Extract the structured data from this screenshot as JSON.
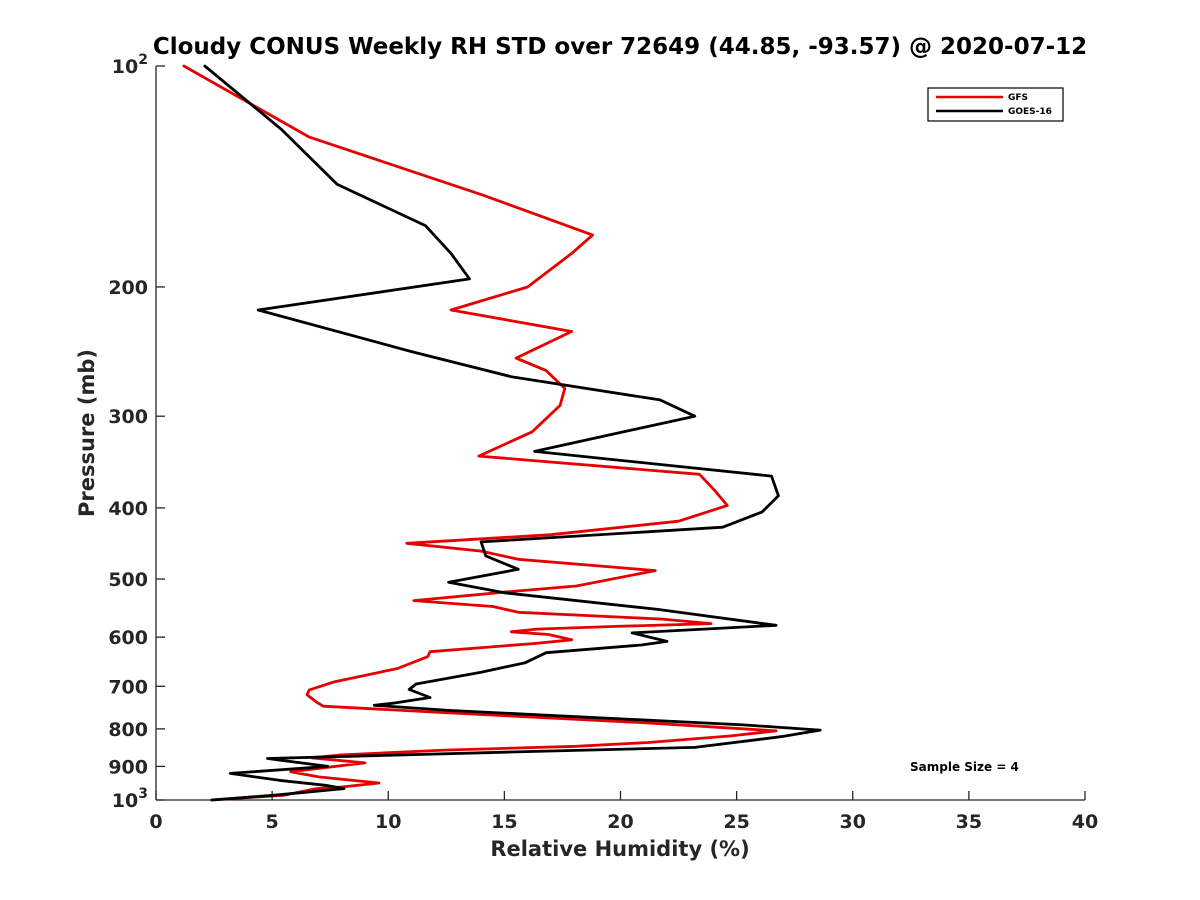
{
  "chart_data": {
    "type": "line",
    "title": "Cloudy CONUS Weekly RH STD over 72649 (44.85, -93.57) @ 2020-07-12",
    "xlabel": "Relative Humidity (%)",
    "ylabel": "Pressure (mb)",
    "xlim": [
      0,
      40
    ],
    "ylim": [
      100,
      1000
    ],
    "y_scale": "log",
    "y_reversed": true,
    "x_ticks": [
      "0",
      "5",
      "10",
      "15",
      "20",
      "25",
      "30",
      "35",
      "40"
    ],
    "y_ticks": [
      {
        "value": 100,
        "label": "10",
        "sup": "2"
      },
      {
        "value": 200,
        "label": "200",
        "sup": ""
      },
      {
        "value": 300,
        "label": "300",
        "sup": ""
      },
      {
        "value": 400,
        "label": "400",
        "sup": ""
      },
      {
        "value": 500,
        "label": "500",
        "sup": ""
      },
      {
        "value": 600,
        "label": "600",
        "sup": ""
      },
      {
        "value": 700,
        "label": "700",
        "sup": ""
      },
      {
        "value": 800,
        "label": "800",
        "sup": ""
      },
      {
        "value": 900,
        "label": "900",
        "sup": ""
      },
      {
        "value": 1000,
        "label": "10",
        "sup": "3"
      }
    ],
    "grid": false,
    "legend_position": "top-right",
    "annotation": "Sample Size = 4",
    "series": [
      {
        "name": "GFS",
        "color": "#e60000",
        "points": [
          [
            1.2,
            100
          ],
          [
            6.6,
            125
          ],
          [
            14.1,
            150
          ],
          [
            18.8,
            170
          ],
          [
            17.9,
            180
          ],
          [
            16.0,
            200
          ],
          [
            12.7,
            215
          ],
          [
            17.9,
            230
          ],
          [
            15.5,
            250
          ],
          [
            16.8,
            260
          ],
          [
            17.6,
            275
          ],
          [
            17.4,
            290
          ],
          [
            16.2,
            315
          ],
          [
            13.9,
            340
          ],
          [
            23.4,
            360
          ],
          [
            24.1,
            380
          ],
          [
            24.6,
            397
          ],
          [
            22.5,
            417
          ],
          [
            17.0,
            435
          ],
          [
            10.8,
            447
          ],
          [
            14.0,
            458
          ],
          [
            15.6,
            470
          ],
          [
            21.5,
            487
          ],
          [
            18.1,
            511
          ],
          [
            15.3,
            520
          ],
          [
            11.1,
            535
          ],
          [
            14.5,
            545
          ],
          [
            15.6,
            555
          ],
          [
            21.8,
            567
          ],
          [
            23.9,
            575
          ],
          [
            19.8,
            580
          ],
          [
            16.4,
            585
          ],
          [
            15.3,
            590
          ],
          [
            16.9,
            595
          ],
          [
            17.9,
            605
          ],
          [
            16.3,
            612
          ],
          [
            11.8,
            628
          ],
          [
            11.7,
            638
          ],
          [
            10.4,
            662
          ],
          [
            7.7,
            690
          ],
          [
            6.6,
            708
          ],
          [
            6.5,
            719
          ],
          [
            6.9,
            735
          ],
          [
            7.2,
            745
          ],
          [
            12.3,
            760
          ],
          [
            21.1,
            785
          ],
          [
            26.7,
            805
          ],
          [
            24.7,
            818
          ],
          [
            21.2,
            835
          ],
          [
            18.1,
            845
          ],
          [
            12.4,
            855
          ],
          [
            8.0,
            868
          ],
          [
            6.7,
            876
          ],
          [
            9.0,
            890
          ],
          [
            5.8,
            915
          ],
          [
            7.0,
            930
          ],
          [
            9.6,
            948
          ],
          [
            8.0,
            960
          ],
          [
            6.9,
            965
          ],
          [
            5.5,
            985
          ],
          [
            2.4,
            1000
          ]
        ]
      },
      {
        "name": "GOES-16",
        "color": "#000000",
        "points": [
          [
            2.1,
            100
          ],
          [
            5.4,
            122
          ],
          [
            7.8,
            145
          ],
          [
            11.6,
            165
          ],
          [
            12.7,
            180
          ],
          [
            13.5,
            195
          ],
          [
            4.4,
            215
          ],
          [
            11.0,
            245
          ],
          [
            15.3,
            265
          ],
          [
            21.7,
            285
          ],
          [
            23.2,
            300
          ],
          [
            16.3,
            335
          ],
          [
            26.5,
            362
          ],
          [
            26.8,
            385
          ],
          [
            26.1,
            405
          ],
          [
            24.4,
            425
          ],
          [
            14.0,
            445
          ],
          [
            14.2,
            465
          ],
          [
            15.6,
            485
          ],
          [
            12.6,
            505
          ],
          [
            15.0,
            522
          ],
          [
            21.6,
            550
          ],
          [
            26.7,
            578
          ],
          [
            20.5,
            592
          ],
          [
            22.0,
            608
          ],
          [
            20.9,
            615
          ],
          [
            16.8,
            630
          ],
          [
            15.9,
            650
          ],
          [
            14.0,
            670
          ],
          [
            11.2,
            695
          ],
          [
            10.9,
            707
          ],
          [
            11.8,
            725
          ],
          [
            10.2,
            738
          ],
          [
            9.4,
            743
          ],
          [
            12.6,
            755
          ],
          [
            25.3,
            790
          ],
          [
            28.6,
            803
          ],
          [
            26.9,
            820
          ],
          [
            23.2,
            848
          ],
          [
            15.5,
            860
          ],
          [
            4.8,
            878
          ],
          [
            7.4,
            900
          ],
          [
            3.2,
            920
          ],
          [
            5.3,
            940
          ],
          [
            7.3,
            955
          ],
          [
            8.1,
            965
          ],
          [
            5.1,
            985
          ],
          [
            2.4,
            1000
          ]
        ]
      }
    ]
  }
}
